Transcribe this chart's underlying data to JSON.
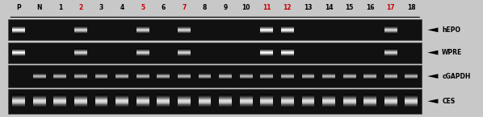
{
  "lane_labels": [
    "P",
    "N",
    "1",
    "2",
    "3",
    "4",
    "5",
    "6",
    "7",
    "8",
    "9",
    "10",
    "11",
    "12",
    "13",
    "14",
    "15",
    "16",
    "17",
    "18"
  ],
  "red_labels": [
    "2",
    "5",
    "7",
    "11",
    "12",
    "17"
  ],
  "row_labels": [
    "hEPO",
    "WPRE",
    "cGAPDH",
    "CES"
  ],
  "label_color_black": "#000000",
  "label_color_red": "#cc0000",
  "outer_bg": "#c8c8c8"
}
